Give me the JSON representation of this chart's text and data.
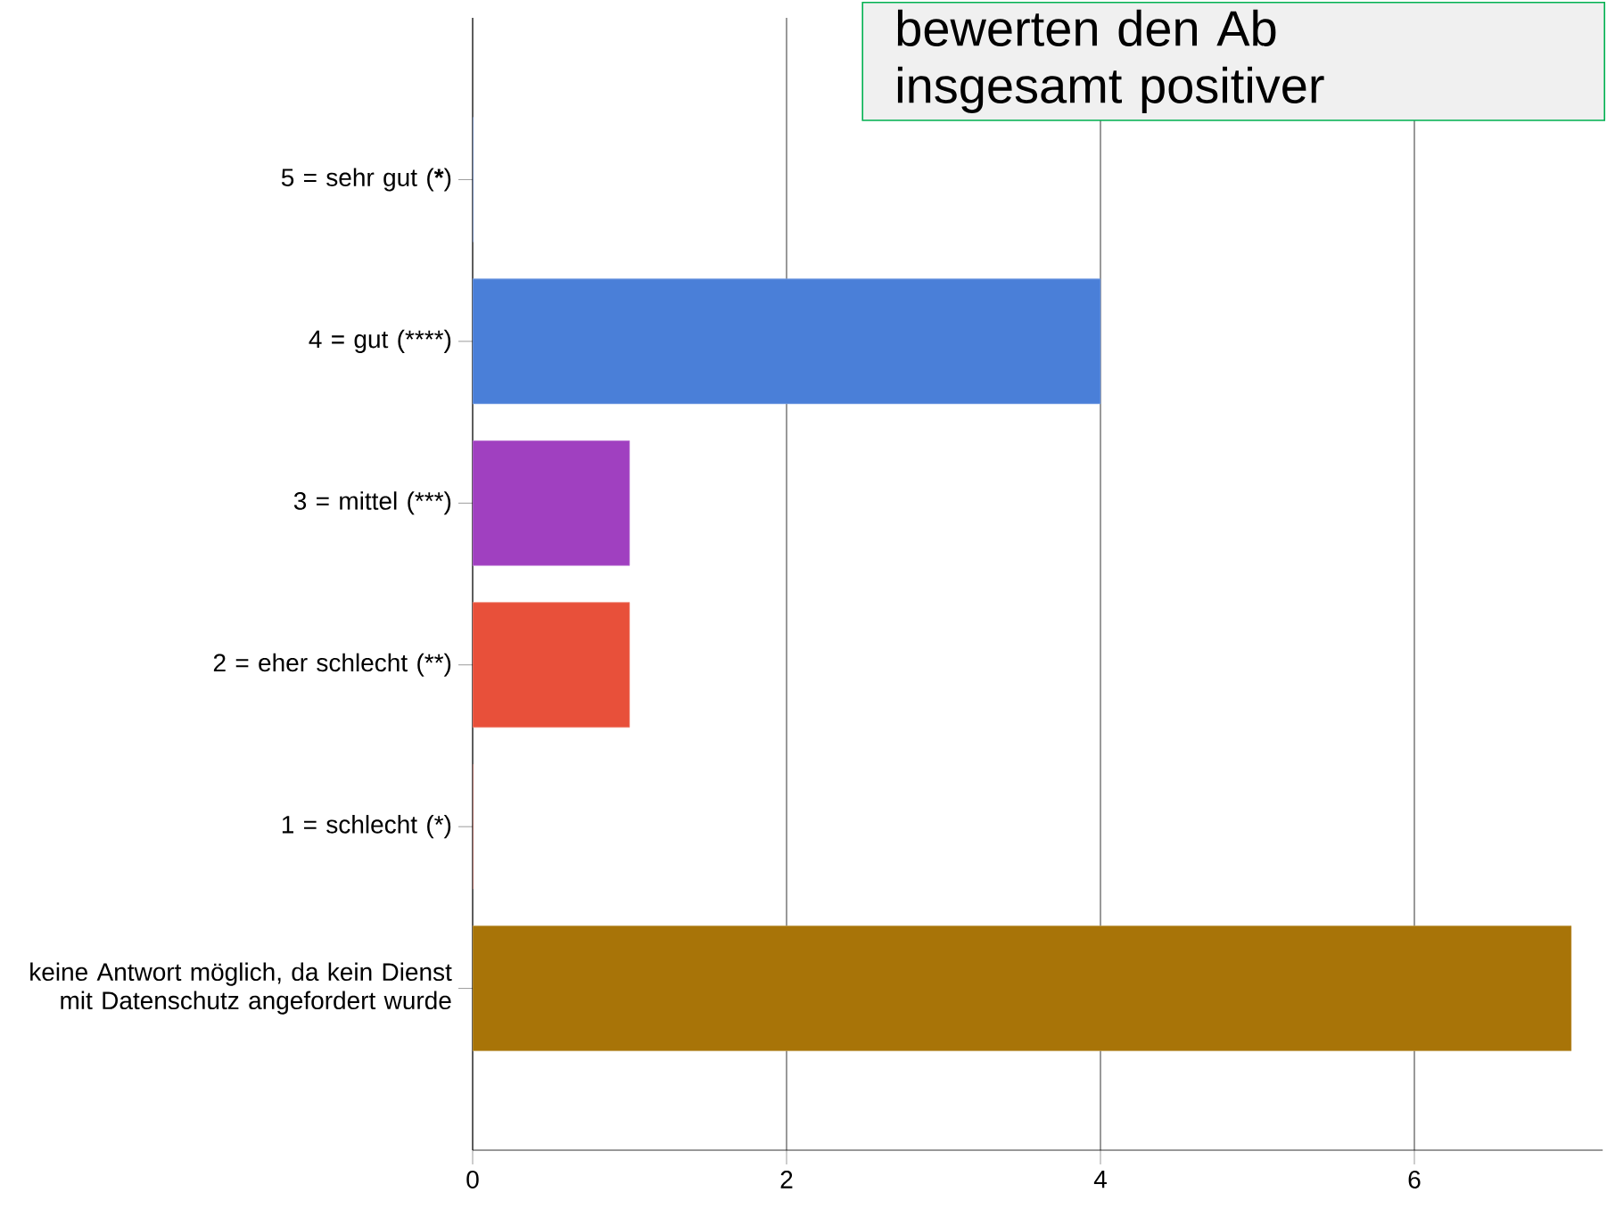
{
  "chart_data": {
    "type": "bar",
    "orientation": "horizontal",
    "categories": [
      "5 = sehr gut (*****)",
      "4 = gut (****)",
      "3 = mittel (***)",
      "2 = eher schlecht (**)",
      "1 = schlecht (*)",
      "keine Antwort möglich, da kein Dienst mit Datenschutz angefordert wurde"
    ],
    "values": [
      0,
      4,
      1,
      1,
      0,
      7
    ],
    "colors": [
      "#4a7fd8",
      "#4a7fd8",
      "#a040c0",
      "#e8503a",
      "#c04030",
      "#a87408"
    ],
    "xlim": [
      0,
      7.2
    ],
    "xticks": [
      0,
      2,
      4,
      6
    ],
    "grid": "x",
    "annotations": [
      "bewerten den Ab",
      "insgesamt positiver"
    ]
  }
}
